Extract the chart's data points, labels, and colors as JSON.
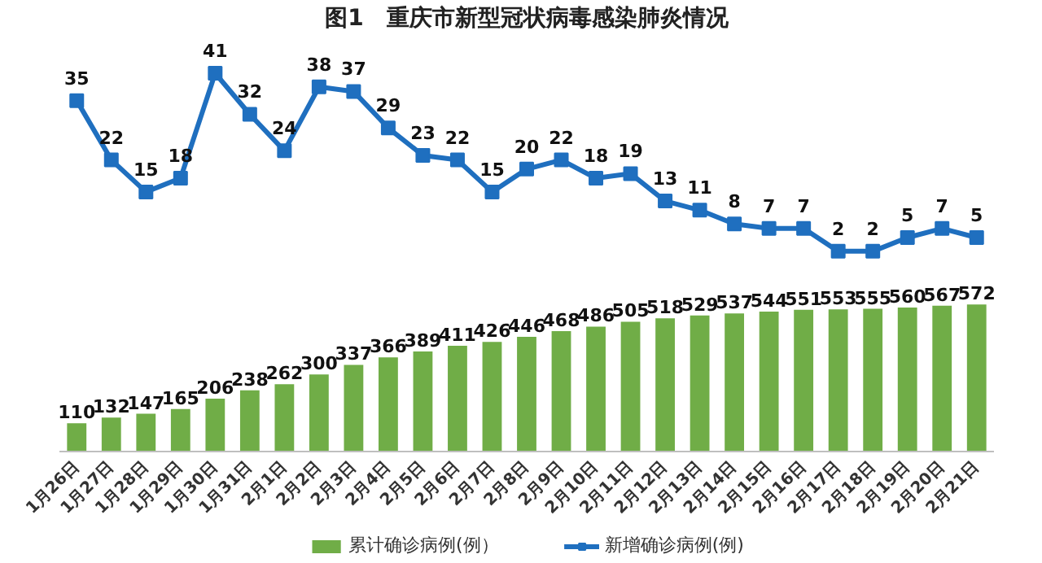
{
  "chart_data": [
    {
      "type": "line",
      "title": "图1　重庆市新型冠状病毒感染肺炎情况",
      "categories": [
        null,
        null,
        null,
        null,
        null,
        null,
        null,
        null,
        null,
        null,
        null,
        null,
        null,
        null,
        null,
        null,
        null,
        null,
        null,
        null,
        null,
        null,
        null,
        null,
        null,
        null,
        null
      ],
      "series": [
        {
          "name": "新增确诊病例(例)",
          "color": "#1f6fbf",
          "values": [
            35,
            22,
            15,
            18,
            41,
            32,
            24,
            38,
            37,
            29,
            23,
            22,
            15,
            20,
            22,
            18,
            19,
            13,
            11,
            8,
            7,
            7,
            2,
            2,
            5,
            7,
            5
          ]
        }
      ],
      "tick_labels": false,
      "legend": "bottom",
      "marker": "square",
      "data_labels": true
    },
    {
      "type": "bar",
      "categories": [
        "1月26日",
        "1月27日",
        "1月28日",
        "1月29日",
        "1月30日",
        "1月31日",
        "2月1日",
        "2月2日",
        "2月3日",
        "2月4日",
        "2月5日",
        "2月6日",
        "2月7日",
        "2月8日",
        "2月9日",
        "2月10日",
        "2月11日",
        "2月12日",
        "2月13日",
        "2月14日",
        "2月15日",
        "2月16日",
        "2月17日",
        "2月18日",
        "2月19日",
        "2月20日",
        "2月21日"
      ],
      "series": [
        {
          "name": "累计确诊病例(例）",
          "color": "#70ad47",
          "values": [
            110,
            132,
            147,
            165,
            206,
            238,
            262,
            300,
            337,
            366,
            389,
            411,
            426,
            446,
            468,
            486,
            505,
            518,
            529,
            537,
            544,
            551,
            553,
            555,
            560,
            567,
            572
          ]
        }
      ],
      "tick_labels": "x",
      "legend": "bottom",
      "data_labels": true
    }
  ]
}
